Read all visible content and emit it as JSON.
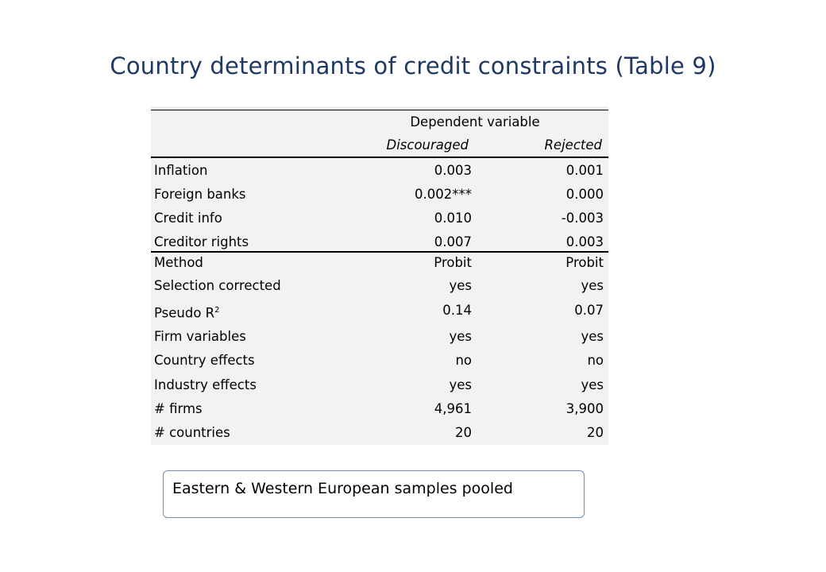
{
  "title": "Country determinants of credit constraints (Table 9)",
  "table": {
    "header": "Dependent variable",
    "columns": [
      "Discouraged",
      "Rejected"
    ],
    "rows": [
      {
        "label": "Inflation",
        "discouraged": "0.003",
        "rejected": "0.001"
      },
      {
        "label": "Foreign banks",
        "discouraged": "0.002***",
        "rejected": "0.000"
      },
      {
        "label": "Credit info",
        "discouraged": "0.010",
        "rejected": "-0.003"
      },
      {
        "label": "Creditor rights",
        "discouraged": "0.007",
        "rejected": "0.003"
      },
      {
        "label": "Method",
        "discouraged": "Probit",
        "rejected": "Probit"
      },
      {
        "label": "Selection corrected",
        "discouraged": "yes",
        "rejected": "yes"
      },
      {
        "label": "Pseudo R",
        "label_sup": "2",
        "discouraged": "0.14",
        "rejected": "0.07"
      },
      {
        "label": "Firm variables",
        "discouraged": "yes",
        "rejected": "yes"
      },
      {
        "label": "Country effects",
        "discouraged": "no",
        "rejected": "no"
      },
      {
        "label": "Industry effects",
        "discouraged": "yes",
        "rejected": "yes"
      },
      {
        "label": "# firms",
        "discouraged": "4,961",
        "rejected": "3,900"
      },
      {
        "label": "# countries",
        "discouraged": "20",
        "rejected": "20"
      }
    ]
  },
  "note": "Eastern & Western European samples pooled"
}
